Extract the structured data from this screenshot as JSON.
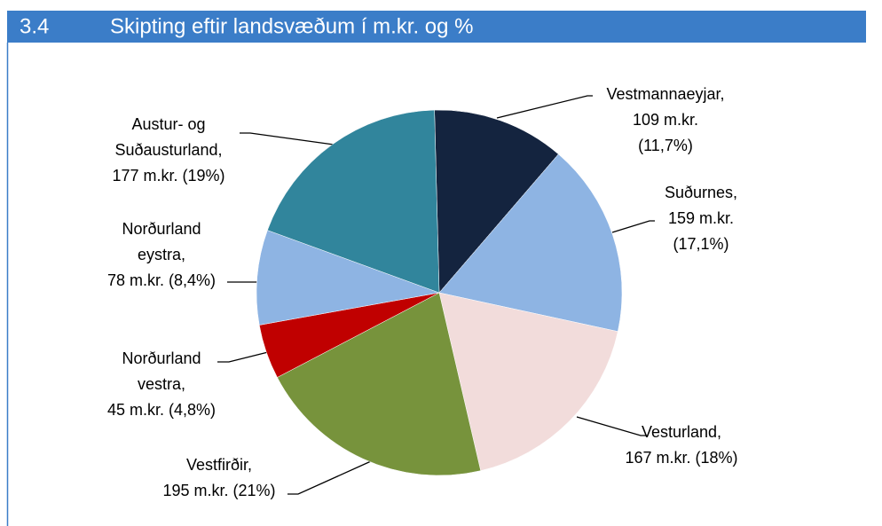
{
  "chart_data": {
    "type": "pie",
    "section": "3.4",
    "title": "Skipting eftir landsvæðum í m.kr. og %",
    "values": [
      109,
      159,
      167,
      195,
      45,
      78,
      177
    ],
    "labels": [
      [
        "Vestmannaeyjar,",
        "109 m.kr.",
        "(11,7%)"
      ],
      [
        "Suðurnes,",
        "159 m.kr.",
        "(17,1%)"
      ],
      [
        "Vesturland,",
        "167 m.kr. (18%)"
      ],
      [
        "Vestfirðir,",
        "195 m.kr. (21%)"
      ],
      [
        "Norðurland",
        "vestra,",
        "45 m.kr. (4,8%)"
      ],
      [
        "Norðurland",
        "eystra,",
        "78 m.kr. (8,4%)"
      ],
      [
        "Austur- og",
        "Suðausturland,",
        "177 m.kr. (19%)"
      ]
    ],
    "colors": [
      "#14243f",
      "#8eb4e3",
      "#f2dcdb",
      "#77933c",
      "#c00000",
      "#8eb4e3",
      "#31859c"
    ]
  }
}
